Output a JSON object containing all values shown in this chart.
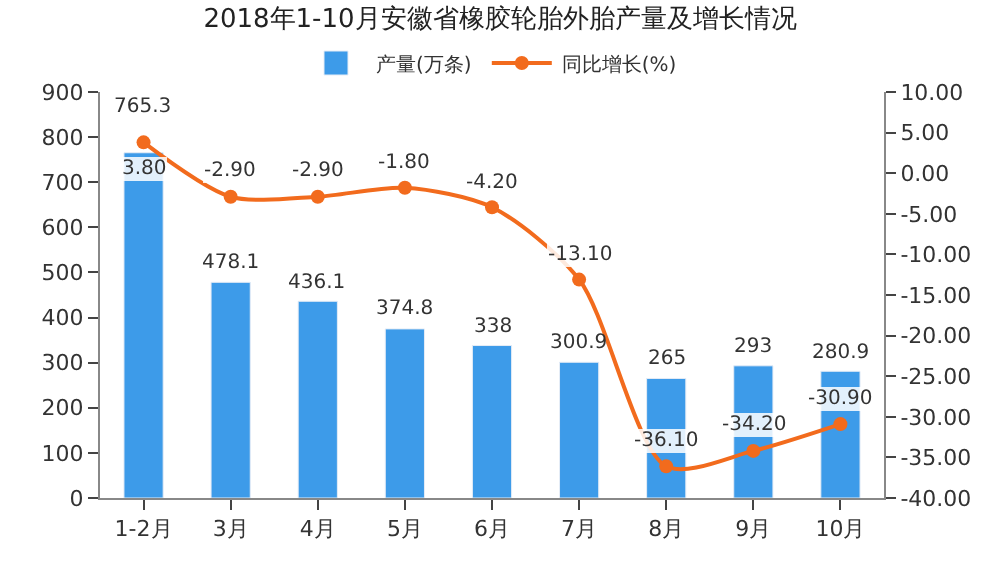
{
  "chart_data": {
    "type": "bar",
    "title": "2018年1-10月安徽省橡胶轮胎外胎产量及增长情况",
    "categories": [
      "1-2月",
      "3月",
      "4月",
      "5月",
      "6月",
      "7月",
      "8月",
      "9月",
      "10月"
    ],
    "series": [
      {
        "name": "产量(万条)",
        "color": "#3d9be9",
        "values": [
          765.3,
          478.1,
          436.1,
          374.8,
          338,
          300.9,
          265,
          293,
          280.9
        ],
        "value_labels": [
          "765.3",
          "478.1",
          "436.1",
          "374.8",
          "338",
          "300.9",
          "265",
          "293",
          "280.9"
        ]
      },
      {
        "name": "同比增长(%)",
        "type": "line",
        "axis": "y2",
        "color": "#f26b1d",
        "marker": "circle",
        "values": [
          3.8,
          -2.9,
          -2.9,
          -1.8,
          -4.2,
          -13.1,
          -36.1,
          -34.2,
          -30.9
        ],
        "value_labels": [
          "3.80",
          "-2.90",
          "-2.90",
          "-1.80",
          "-4.20",
          "-13.10",
          "-36.10",
          "-34.20",
          "-30.90"
        ]
      }
    ],
    "ylim": [
      0,
      900
    ],
    "yticks": [
      0,
      100,
      200,
      300,
      400,
      500,
      600,
      700,
      800,
      900
    ],
    "y2lim": [
      -40,
      10
    ],
    "y2ticks": [
      {
        "value": -40,
        "label": "-40.00"
      },
      {
        "value": -35,
        "label": "-35.00"
      },
      {
        "value": -30,
        "label": "-30.00"
      },
      {
        "value": -25,
        "label": "-25.00"
      },
      {
        "value": -20,
        "label": "-20.00"
      },
      {
        "value": -15,
        "label": "-15.00"
      },
      {
        "value": -10,
        "label": "-10.00"
      },
      {
        "value": -5,
        "label": "-5.00"
      },
      {
        "value": 0,
        "label": "0.00"
      },
      {
        "value": 5,
        "label": "5.00"
      },
      {
        "value": 10,
        "label": "10.00"
      }
    ],
    "legend": "top"
  }
}
